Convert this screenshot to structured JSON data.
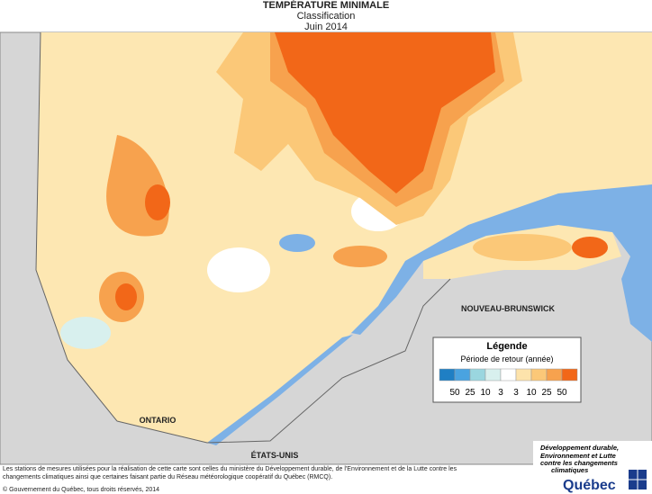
{
  "header": {
    "title": "TEMPÉRATURE MINIMALE",
    "subtitle": "Classification",
    "period": "Juin 2014"
  },
  "map_labels": {
    "ontario": "ONTARIO",
    "usa": "ÉTATS-UNIS",
    "new_brunswick": "NOUVEAU-BRUNSWICK"
  },
  "legend": {
    "title": "Légende",
    "subtitle": "Période de retour (année)",
    "colors": [
      "#1f7fc4",
      "#4aa3e0",
      "#9ad6df",
      "#d8f0ee",
      "#ffffff",
      "#fde3ab",
      "#fbc878",
      "#f7a24e",
      "#f26718"
    ],
    "labels": [
      50,
      25,
      10,
      3,
      3,
      10,
      25,
      50
    ]
  },
  "footer": {
    "note_line1": "Les stations de mesures utilisées pour la réalisation de cette carte sont celles du ministère du Développement durable, de l'Environnement et de la Lutte contre les",
    "note_line2": "changements climatiques ainsi que certaines faisant partie du Réseau météorologique coopératif du Québec (RMCQ).",
    "copyright": "© Gouvernement du Québec, tous droits réservés, 2014"
  },
  "logo": {
    "ministry_line1": "Développement durable,",
    "ministry_line2": "Environnement et Lutte",
    "ministry_line3": "contre les changements",
    "ministry_line4": "climatiques",
    "brand": "Québec"
  }
}
